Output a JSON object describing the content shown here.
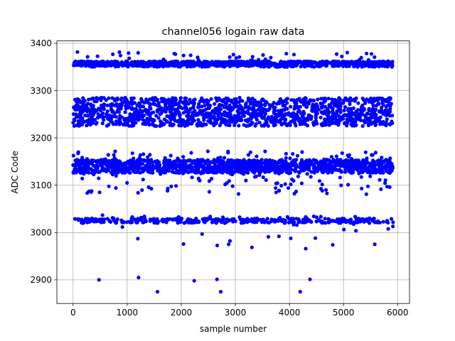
{
  "chart_data": {
    "type": "scatter",
    "title": "channel056 logain raw data",
    "xlabel": "sample number",
    "ylabel": "ADC Code",
    "xlim": [
      -300,
      6220
    ],
    "ylim": [
      2850,
      3405
    ],
    "xticks": [
      0,
      1000,
      2000,
      3000,
      4000,
      5000,
      6000
    ],
    "yticks": [
      2900,
      3000,
      3100,
      3200,
      3300,
      3400
    ],
    "grid": true,
    "marker_color": "#0000ff",
    "x_range": [
      0,
      5920
    ],
    "bands": [
      {
        "center": 3357,
        "spread": 5,
        "tail_low": 2,
        "tail_high": 20,
        "count": 1100
      },
      {
        "center": 3255,
        "spread": 30,
        "tail_low": 0,
        "tail_high": 0,
        "count": 1400
      },
      {
        "center": 3140,
        "spread": 14,
        "tail_low": 45,
        "tail_high": 18,
        "count": 1400
      },
      {
        "center": 3025,
        "spread": 5,
        "tail_low": 55,
        "tail_high": 7,
        "count": 380
      }
    ],
    "outliers": [
      {
        "x": 480,
        "y": 2900
      },
      {
        "x": 1210,
        "y": 2905
      },
      {
        "x": 1560,
        "y": 2875
      },
      {
        "x": 2240,
        "y": 2898
      },
      {
        "x": 2660,
        "y": 2901
      },
      {
        "x": 2730,
        "y": 2875
      },
      {
        "x": 4200,
        "y": 2875
      },
      {
        "x": 4380,
        "y": 2901
      }
    ]
  }
}
